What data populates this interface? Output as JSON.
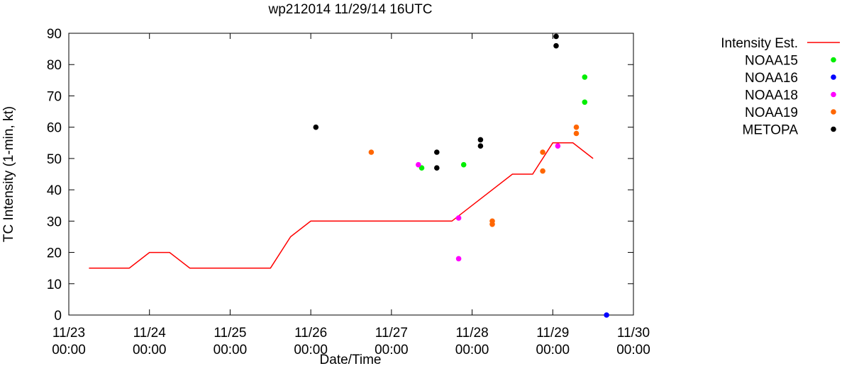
{
  "chart_data": {
    "type": "scatter",
    "title": "wp212014 11/29/14 16UTC",
    "xlabel": "Date/Time",
    "ylabel": "TC Intensity (1-min, kt)",
    "ylim": [
      0,
      90
    ],
    "xlim": [
      "2014-11-23T00:00",
      "2014-11-30T00:00"
    ],
    "y_ticks": [
      0,
      10,
      20,
      30,
      40,
      50,
      60,
      70,
      80,
      90
    ],
    "x_ticks": [
      {
        "date": "2014-11-23T00:00",
        "label_date": "11/23",
        "label_time": "00:00"
      },
      {
        "date": "2014-11-24T00:00",
        "label_date": "11/24",
        "label_time": "00:00"
      },
      {
        "date": "2014-11-25T00:00",
        "label_date": "11/25",
        "label_time": "00:00"
      },
      {
        "date": "2014-11-26T00:00",
        "label_date": "11/26",
        "label_time": "00:00"
      },
      {
        "date": "2014-11-27T00:00",
        "label_date": "11/27",
        "label_time": "00:00"
      },
      {
        "date": "2014-11-28T00:00",
        "label_date": "11/28",
        "label_time": "00:00"
      },
      {
        "date": "2014-11-29T00:00",
        "label_date": "11/29",
        "label_time": "00:00"
      },
      {
        "date": "2014-11-30T00:00",
        "label_date": "11/30",
        "label_time": "00:00"
      }
    ],
    "legend_position": "outside-right",
    "grid": false,
    "series": [
      {
        "name": "Intensity Est.",
        "kind": "line",
        "color": "#ff0000",
        "points": [
          {
            "x": "2014-11-23T06:00",
            "y": 15
          },
          {
            "x": "2014-11-23T18:00",
            "y": 15
          },
          {
            "x": "2014-11-24T00:00",
            "y": 20
          },
          {
            "x": "2014-11-24T06:00",
            "y": 20
          },
          {
            "x": "2014-11-24T12:00",
            "y": 15
          },
          {
            "x": "2014-11-25T12:00",
            "y": 15
          },
          {
            "x": "2014-11-25T18:00",
            "y": 25
          },
          {
            "x": "2014-11-26T00:00",
            "y": 30
          },
          {
            "x": "2014-11-27T18:00",
            "y": 30
          },
          {
            "x": "2014-11-28T12:00",
            "y": 45
          },
          {
            "x": "2014-11-28T18:00",
            "y": 45
          },
          {
            "x": "2014-11-29T00:00",
            "y": 55
          },
          {
            "x": "2014-11-29T06:00",
            "y": 55
          },
          {
            "x": "2014-11-29T12:00",
            "y": 50
          }
        ]
      },
      {
        "name": "NOAA15",
        "kind": "points",
        "color": "#00ee00",
        "points": [
          {
            "x": "2014-11-27T09:00",
            "y": 47
          },
          {
            "x": "2014-11-27T21:30",
            "y": 48
          },
          {
            "x": "2014-11-29T09:30",
            "y": 76
          },
          {
            "x": "2014-11-29T09:30",
            "y": 68
          }
        ]
      },
      {
        "name": "NOAA16",
        "kind": "points",
        "color": "#0000ff",
        "points": [
          {
            "x": "2014-11-29T16:00",
            "y": 0
          }
        ]
      },
      {
        "name": "NOAA18",
        "kind": "points",
        "color": "#ff00ff",
        "points": [
          {
            "x": "2014-11-27T08:00",
            "y": 48
          },
          {
            "x": "2014-11-27T20:00",
            "y": 31
          },
          {
            "x": "2014-11-27T20:00",
            "y": 18
          },
          {
            "x": "2014-11-29T01:30",
            "y": 54
          }
        ]
      },
      {
        "name": "NOAA19",
        "kind": "points",
        "color": "#ff6600",
        "points": [
          {
            "x": "2014-11-26T18:00",
            "y": 52
          },
          {
            "x": "2014-11-28T06:00",
            "y": 30
          },
          {
            "x": "2014-11-28T06:00",
            "y": 29
          },
          {
            "x": "2014-11-28T21:00",
            "y": 52
          },
          {
            "x": "2014-11-28T21:00",
            "y": 46
          },
          {
            "x": "2014-11-29T07:00",
            "y": 60
          },
          {
            "x": "2014-11-29T07:00",
            "y": 58
          }
        ]
      },
      {
        "name": "METOPA",
        "kind": "points",
        "color": "#000000",
        "points": [
          {
            "x": "2014-11-26T01:30",
            "y": 60
          },
          {
            "x": "2014-11-27T13:30",
            "y": 52
          },
          {
            "x": "2014-11-27T13:30",
            "y": 47
          },
          {
            "x": "2014-11-28T02:30",
            "y": 56
          },
          {
            "x": "2014-11-28T02:30",
            "y": 54
          },
          {
            "x": "2014-11-29T01:00",
            "y": 89
          },
          {
            "x": "2014-11-29T01:00",
            "y": 86
          }
        ]
      }
    ]
  }
}
